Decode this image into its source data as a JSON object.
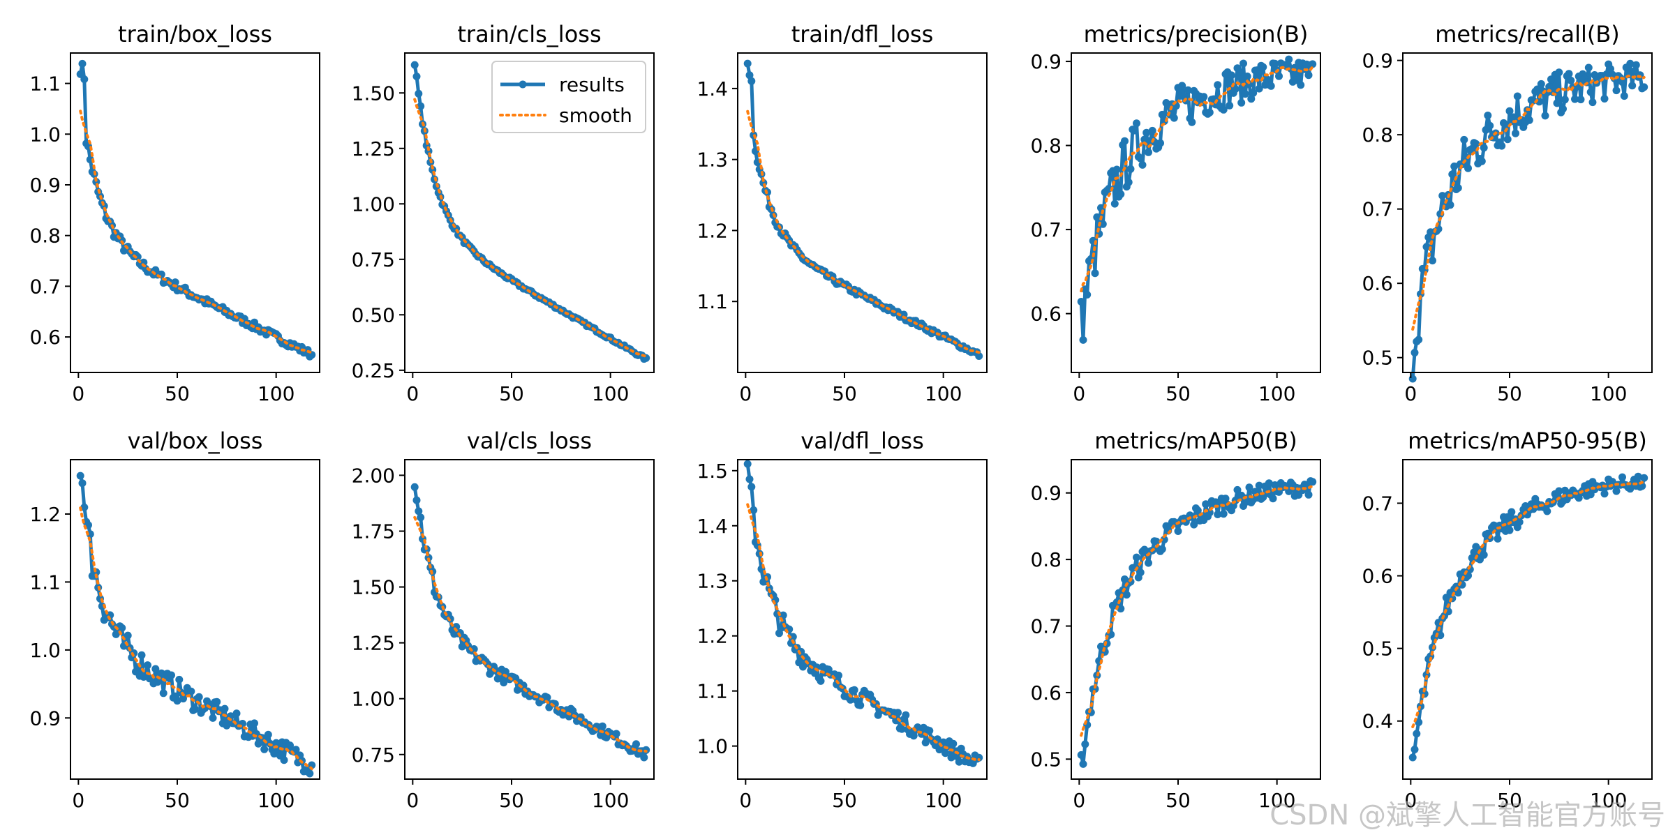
{
  "colors": {
    "results": "#1f77b4",
    "smooth": "#ff7f0e",
    "axis": "#000000"
  },
  "legend": {
    "results_label": "results",
    "smooth_label": "smooth",
    "placement": "upper-right of train/cls_loss"
  },
  "watermark": "CSDN @斌擎人工智能官方账号",
  "chart_data": [
    {
      "type": "line",
      "title": "train/box_loss",
      "xlim": [
        -4,
        122
      ],
      "ylim": [
        0.53,
        1.16
      ],
      "xticks": [
        0,
        50,
        100
      ],
      "yticks": [
        0.6,
        0.7,
        0.8,
        0.9,
        1.0,
        1.1
      ],
      "yfmt": 1,
      "pattern": "exp",
      "start": 1.07,
      "peak": 1.135,
      "end": 0.565,
      "noise": 0.012
    },
    {
      "type": "line",
      "title": "train/cls_loss",
      "xlim": [
        -4,
        122
      ],
      "ylim": [
        0.24,
        1.68
      ],
      "xticks": [
        0,
        50,
        100
      ],
      "yticks": [
        0.25,
        0.5,
        0.75,
        1.0,
        1.25,
        1.5
      ],
      "yfmt": 2,
      "pattern": "exp",
      "start": 1.64,
      "peak": 1.64,
      "end": 0.3,
      "noise": 0.01,
      "legend": true
    },
    {
      "type": "line",
      "title": "train/dfl_loss",
      "xlim": [
        -4,
        122
      ],
      "ylim": [
        1.0,
        1.45
      ],
      "xticks": [
        0,
        50,
        100
      ],
      "yticks": [
        1.1,
        1.2,
        1.3,
        1.4
      ],
      "yfmt": 1,
      "pattern": "exp",
      "start": 1.39,
      "peak": 1.435,
      "end": 1.025,
      "noise": 0.006
    },
    {
      "type": "line",
      "title": "metrics/precision(B)",
      "xlim": [
        -4,
        122
      ],
      "ylim": [
        0.53,
        0.91
      ],
      "xticks": [
        0,
        50,
        100
      ],
      "yticks": [
        0.6,
        0.7,
        0.8,
        0.9
      ],
      "yfmt": 1,
      "pattern": "rise",
      "start": 0.585,
      "peak": 0.585,
      "end": 0.885,
      "noise": 0.03
    },
    {
      "type": "line",
      "title": "metrics/recall(B)",
      "xlim": [
        -4,
        122
      ],
      "ylim": [
        0.48,
        0.91
      ],
      "xticks": [
        0,
        50,
        100
      ],
      "yticks": [
        0.5,
        0.6,
        0.7,
        0.8,
        0.9
      ],
      "yfmt": 1,
      "pattern": "rise",
      "start": 0.51,
      "peak": 0.51,
      "end": 0.875,
      "noise": 0.035
    },
    {
      "type": "line",
      "title": "val/box_loss",
      "xlim": [
        -4,
        122
      ],
      "ylim": [
        0.81,
        1.28
      ],
      "xticks": [
        0,
        50,
        100
      ],
      "yticks": [
        0.9,
        1.0,
        1.1,
        1.2
      ],
      "yfmt": 1,
      "pattern": "exp",
      "start": 1.25,
      "peak": 1.26,
      "end": 0.83,
      "noise": 0.025
    },
    {
      "type": "line",
      "title": "val/cls_loss",
      "xlim": [
        -4,
        122
      ],
      "ylim": [
        0.64,
        2.07
      ],
      "xticks": [
        0,
        50,
        100
      ],
      "yticks": [
        0.75,
        1.0,
        1.25,
        1.5,
        1.75,
        2.0
      ],
      "yfmt": 2,
      "pattern": "exp",
      "start": 1.99,
      "peak": 1.99,
      "end": 0.75,
      "noise": 0.04
    },
    {
      "type": "line",
      "title": "val/dfl_loss",
      "xlim": [
        -4,
        122
      ],
      "ylim": [
        0.94,
        1.52
      ],
      "xticks": [
        0,
        50,
        100
      ],
      "yticks": [
        1.0,
        1.1,
        1.2,
        1.3,
        1.4,
        1.5
      ],
      "yfmt": 1,
      "pattern": "exp",
      "start": 1.5,
      "peak": 1.5,
      "end": 0.965,
      "noise": 0.025
    },
    {
      "type": "line",
      "title": "metrics/mAP50(B)",
      "xlim": [
        -4,
        122
      ],
      "ylim": [
        0.47,
        0.95
      ],
      "xticks": [
        0,
        50,
        100
      ],
      "yticks": [
        0.5,
        0.6,
        0.7,
        0.8,
        0.9
      ],
      "yfmt": 1,
      "pattern": "rise",
      "start": 0.49,
      "peak": 0.49,
      "end": 0.908,
      "noise": 0.018
    },
    {
      "type": "line",
      "title": "metrics/mAP50-95(B)",
      "xlim": [
        -4,
        122
      ],
      "ylim": [
        0.32,
        0.76
      ],
      "xticks": [
        0,
        50,
        100
      ],
      "yticks": [
        0.4,
        0.5,
        0.6,
        0.7
      ],
      "yfmt": 1,
      "pattern": "rise",
      "start": 0.34,
      "peak": 0.34,
      "end": 0.728,
      "noise": 0.015
    }
  ]
}
